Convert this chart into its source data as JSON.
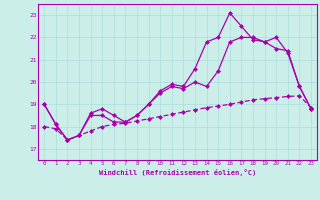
{
  "xlabel": "Windchill (Refroidissement éolien,°C)",
  "background_color": "#cceee8",
  "grid_color": "#aadddd",
  "line_color": "#aa00aa",
  "xlim": [
    -0.5,
    23.5
  ],
  "ylim": [
    16.5,
    23.5
  ],
  "xticks": [
    0,
    1,
    2,
    3,
    4,
    5,
    6,
    7,
    8,
    9,
    10,
    11,
    12,
    13,
    14,
    15,
    16,
    17,
    18,
    19,
    20,
    21,
    22,
    23
  ],
  "yticks": [
    17,
    18,
    19,
    20,
    21,
    22,
    23
  ],
  "line1_x": [
    0,
    1,
    2,
    3,
    4,
    5,
    6,
    7,
    8,
    9,
    10,
    11,
    12,
    13,
    14,
    15,
    16,
    17,
    18,
    19,
    20,
    21,
    22,
    23
  ],
  "line1_y": [
    19.0,
    18.1,
    17.4,
    17.6,
    18.6,
    18.8,
    18.5,
    18.2,
    18.5,
    19.0,
    19.6,
    19.9,
    19.8,
    20.6,
    21.8,
    22.0,
    23.1,
    22.5,
    21.9,
    21.8,
    22.0,
    21.3,
    19.8,
    18.8
  ],
  "line2_x": [
    0,
    1,
    2,
    3,
    4,
    5,
    6,
    7,
    8,
    9,
    10,
    11,
    12,
    13,
    14,
    15,
    16,
    17,
    18,
    19,
    20,
    21,
    22,
    23
  ],
  "line2_y": [
    19.0,
    18.1,
    17.4,
    17.6,
    18.5,
    18.5,
    18.2,
    18.2,
    18.5,
    19.0,
    19.5,
    19.8,
    19.7,
    20.0,
    19.8,
    20.5,
    21.8,
    22.0,
    22.0,
    21.8,
    21.5,
    21.4,
    19.8,
    18.8
  ],
  "line3_x": [
    0,
    1,
    2,
    3,
    4,
    5,
    6,
    7,
    8,
    9,
    10,
    11,
    12,
    13,
    14,
    15,
    16,
    17,
    18,
    19,
    20,
    21,
    22,
    23
  ],
  "line3_y": [
    18.0,
    17.9,
    17.4,
    17.6,
    17.8,
    18.0,
    18.1,
    18.15,
    18.25,
    18.35,
    18.45,
    18.55,
    18.65,
    18.75,
    18.85,
    18.92,
    19.0,
    19.1,
    19.2,
    19.25,
    19.3,
    19.35,
    19.38,
    18.85
  ]
}
